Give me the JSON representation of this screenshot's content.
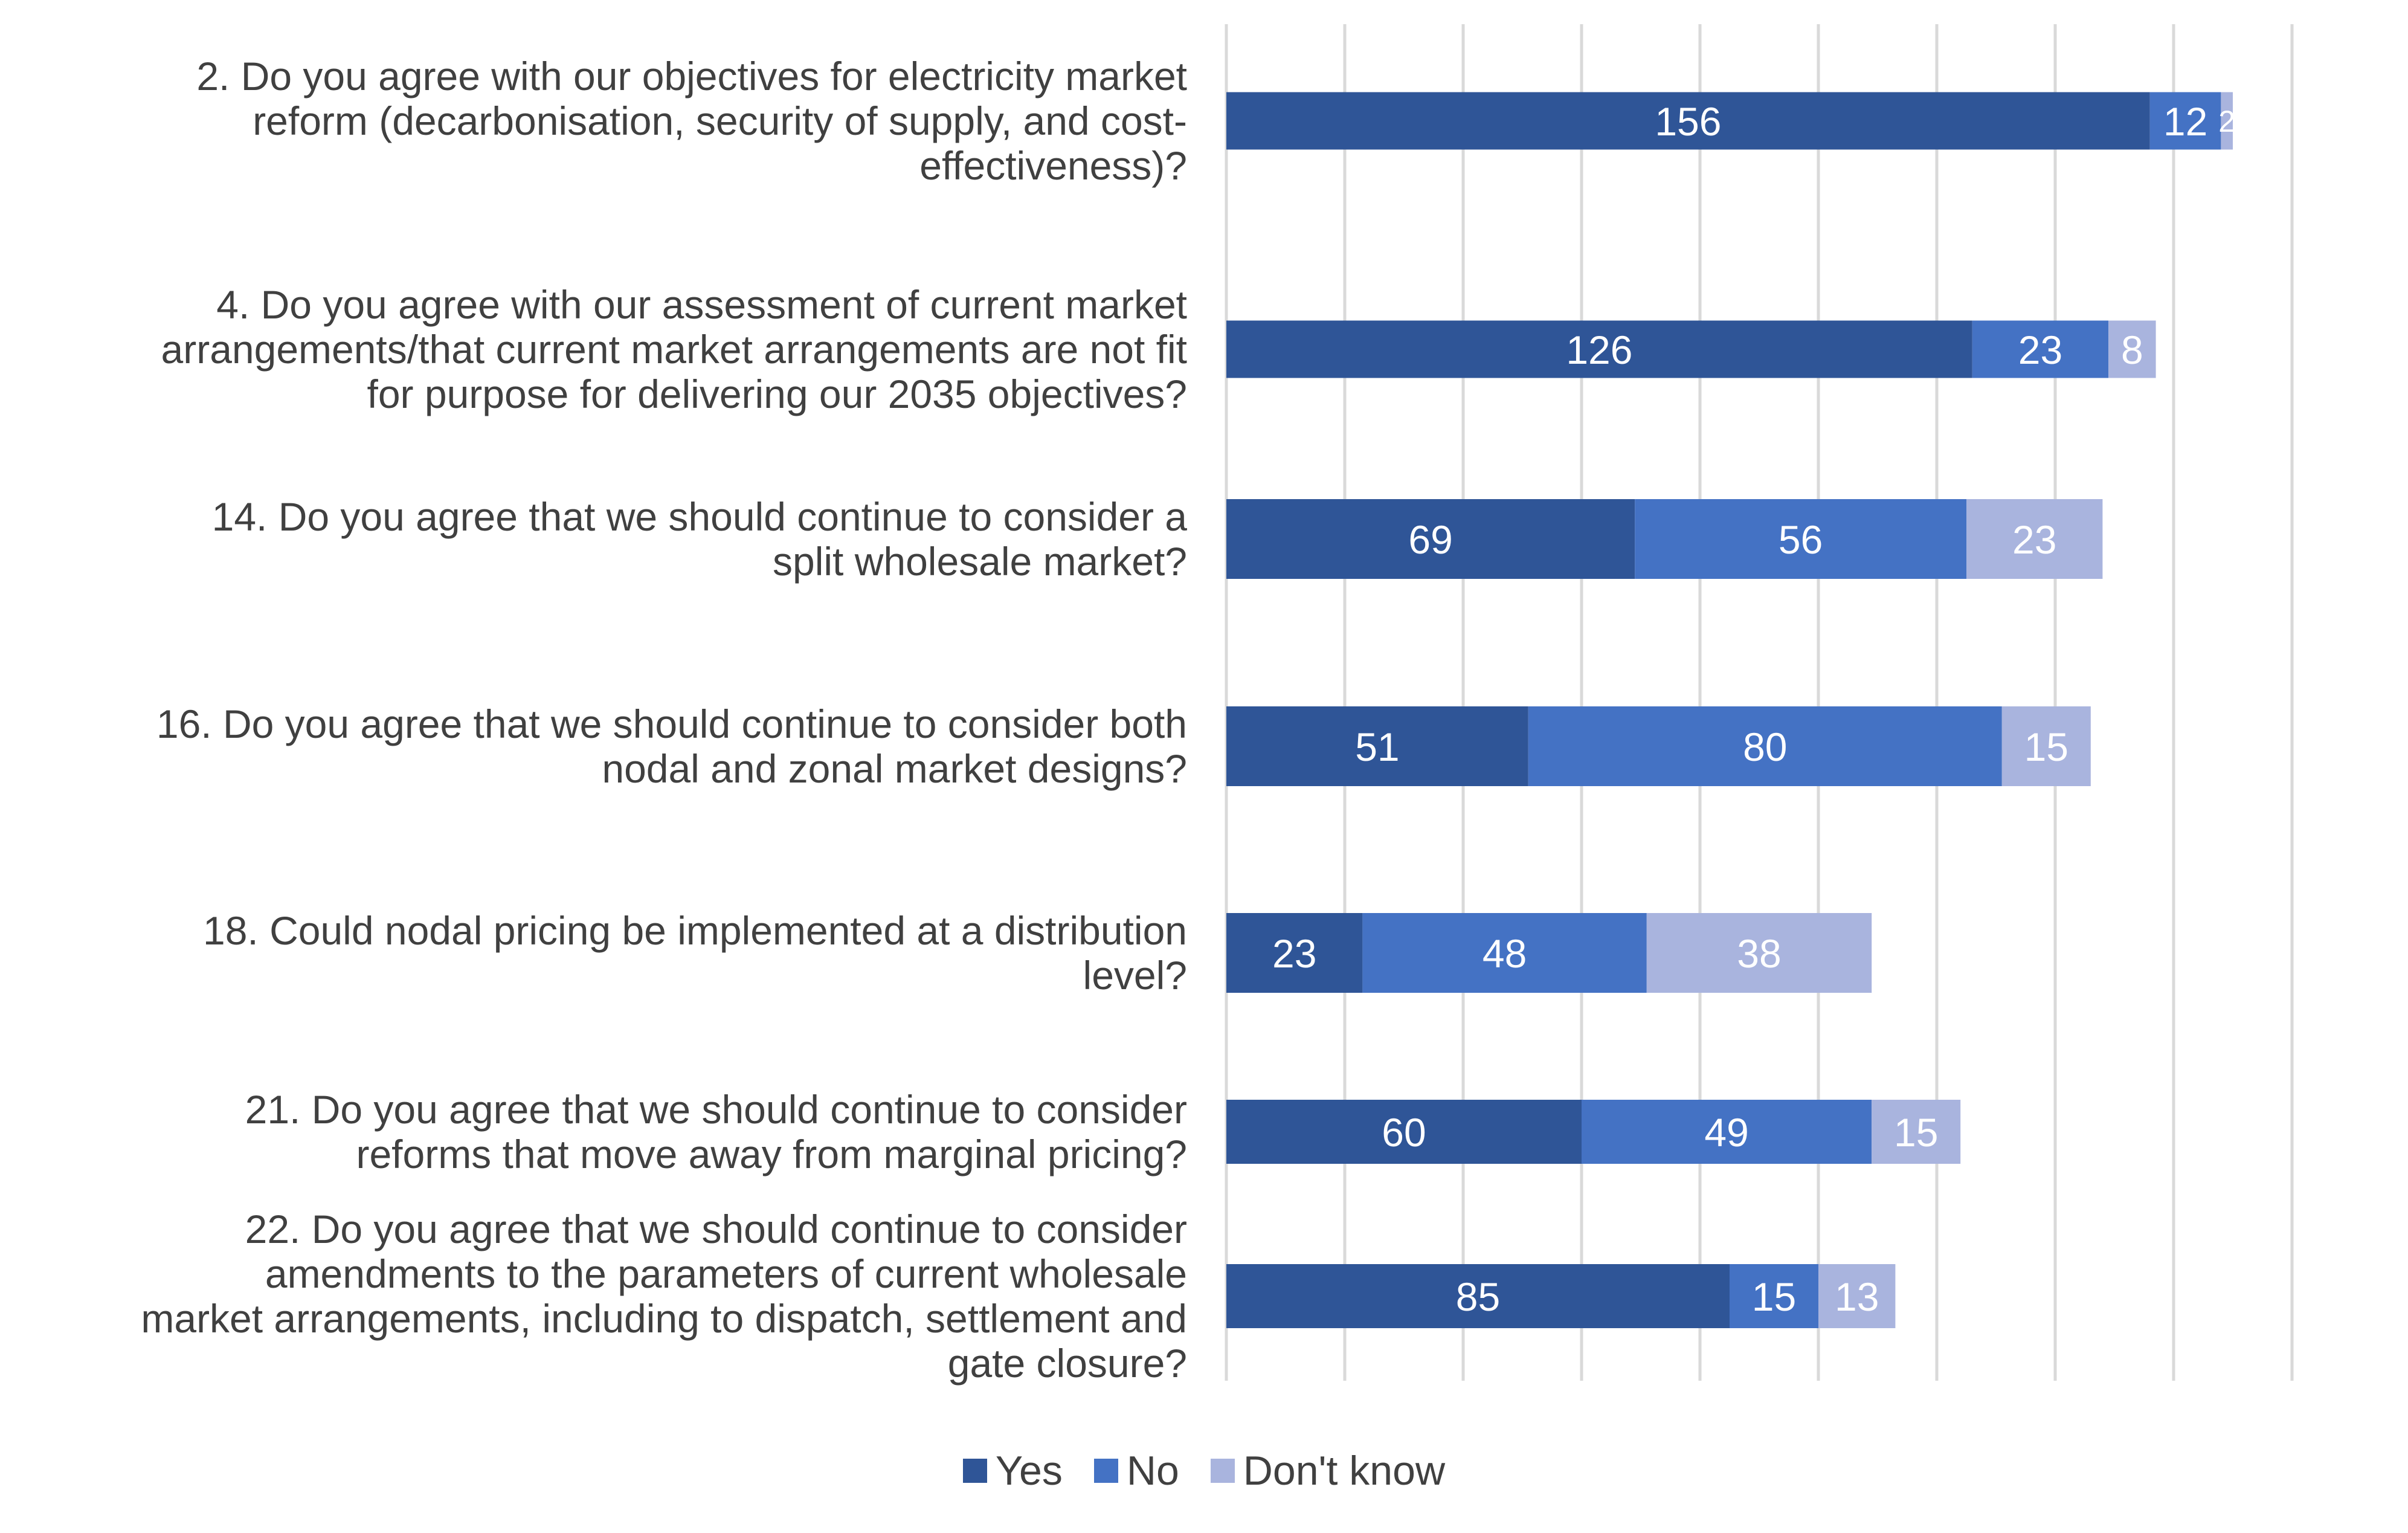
{
  "chart_data": {
    "type": "bar",
    "orientation": "horizontal",
    "stacked": true,
    "categories": [
      "2. Do you agree with our objectives for electricity market reform (decarbonisation, security of supply, and cost-effectiveness)?",
      "4. Do you agree with our assessment of current market arrangements/that current market arrangements are not fit for purpose for delivering our 2035 objectives?",
      "14. Do you agree that we should continue to consider a split wholesale market?",
      "16. Do you agree that we should continue to consider both nodal and zonal market designs?",
      "18. Could nodal pricing be implemented at a distribution level?",
      "21. Do you agree that we should continue to consider reforms that move away from marginal pricing?",
      "22. Do you agree that we should continue to consider amendments to the parameters of current wholesale market arrangements, including to dispatch, settlement and gate closure?"
    ],
    "category_lines": [
      [
        "2. Do you agree with our objectives for electricity market",
        "reform (decarbonisation, security of supply, and cost-",
        "effectiveness)?"
      ],
      [
        "4. Do you agree with our assessment of current market",
        "arrangements/that current market arrangements are not fit",
        "for purpose for delivering our 2035 objectives?"
      ],
      [
        "14. Do you agree that we should continue to consider a",
        "split wholesale market?"
      ],
      [
        "16. Do you agree that we should continue to consider both",
        "nodal and zonal market designs?"
      ],
      [
        "18. Could nodal pricing be implemented at a distribution",
        "level?"
      ],
      [
        "21. Do you agree that we should continue to consider",
        "reforms that move away from marginal pricing?"
      ],
      [
        "22. Do you agree that we should continue to consider",
        "amendments to the parameters of current wholesale",
        "market arrangements, including to dispatch, settlement and",
        "gate closure?"
      ]
    ],
    "series": [
      {
        "name": "Yes",
        "values": [
          156,
          126,
          69,
          51,
          23,
          60,
          85
        ],
        "color": "#2F5597"
      },
      {
        "name": "No",
        "values": [
          12,
          23,
          56,
          80,
          48,
          49,
          15
        ],
        "color": "#4472C4"
      },
      {
        "name": "Don't know",
        "values": [
          2,
          8,
          23,
          15,
          38,
          15,
          13
        ],
        "color": "#A9B4DE"
      }
    ],
    "xlim": [
      0,
      180
    ],
    "legend_position": "bottom",
    "grid": true,
    "label_color": "#ffffff",
    "text_color": "#404040",
    "gridline_color": "#D9D9D9"
  }
}
